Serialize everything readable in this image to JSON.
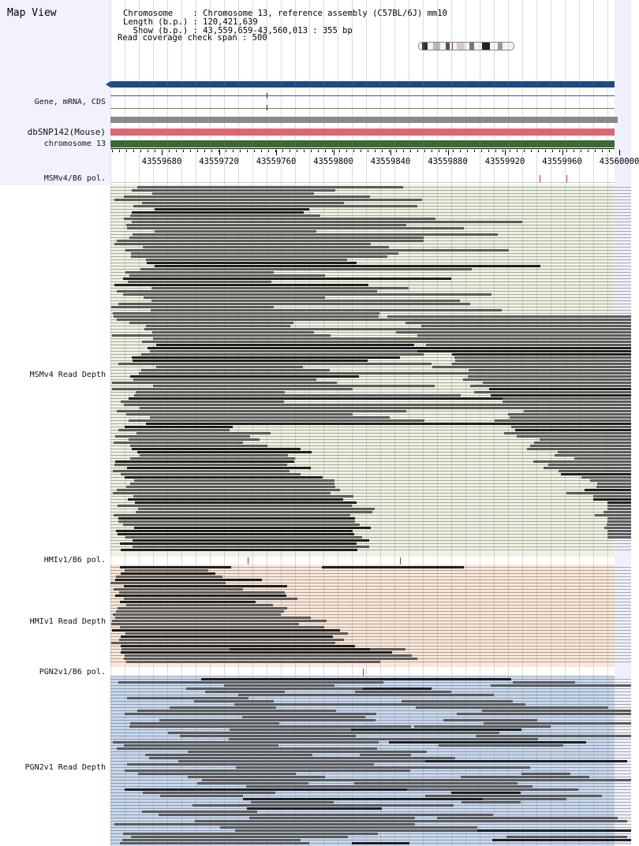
{
  "app": {
    "title": "Map View"
  },
  "info": {
    "line1": "Chromosome    : Chromosome 13, reference assembly (C57BL/6J) mm10",
    "line2": "Length (b.p.) : 120,421,639",
    "line3": "  Show (b.p.) : 43,559,659-43,560,013 : 355 bp",
    "line4": "Read coverage check span : 500"
  },
  "tracks": {
    "gene": "Gene, mRNA, CDS",
    "dbsnp": "dbSNP142(Mouse)",
    "chrom": "chromosome 13",
    "msm_pol": "MSMv4/B6 pol.",
    "msm_depth": "MSMv4 Read Depth",
    "hmi_pol": "HMIv1/B6 pol.",
    "hmi_depth": "HMIv1 Read Depth",
    "pgn_pol": "PGN2v1/B6 pol.",
    "pgn_depth": "PGN2v1 Read Depth"
  },
  "ruler": {
    "ticks": [
      "43559680",
      "43559720",
      "43559760",
      "43559800",
      "43559840",
      "43559880",
      "43559920",
      "43559960",
      "43560000"
    ]
  },
  "colors": {
    "gene_bar": "#1c4a84",
    "dbsnp_bar": "#dd6677",
    "chrom_bar": "#3a6a30",
    "msm_bg": "#eef2e2",
    "hmi_bg": "#fae7d8",
    "pgn_bg": "#c8d8ee"
  }
}
